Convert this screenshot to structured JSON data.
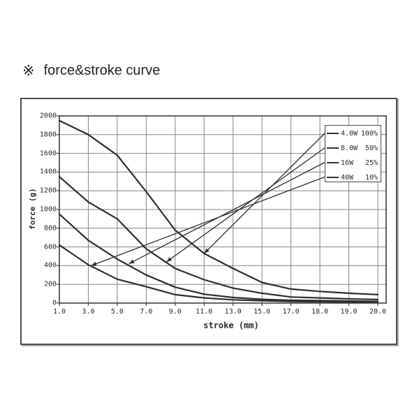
{
  "page": {
    "reference_mark": "※",
    "title_text": "force&stroke curve"
  },
  "colors": {
    "background": "#ffffff",
    "curve": "#2e2e2e",
    "grid": "#858585",
    "plot_border": "#3f3f3f",
    "panel_border": "#4b4b4b",
    "text": "#2b2b2b"
  },
  "legend": {
    "position": "top-right",
    "entries": [
      {
        "label": "4.0W",
        "pct": "100%"
      },
      {
        "label": "8.0W",
        "pct": "50%"
      },
      {
        "label": "16W",
        "pct": "25%"
      },
      {
        "label": "40W",
        "pct": "10%"
      }
    ]
  },
  "chart_data": {
    "type": "line",
    "title": "force&stroke curve",
    "xlabel": "stroke (mm)",
    "ylabel": "force (g)",
    "grid": true,
    "legend_position": "top-right",
    "x_ticks": [
      1.0,
      3.0,
      5.0,
      7.0,
      9.0,
      11.0,
      13.0,
      15.0,
      17.0,
      18.0,
      19.0,
      20.0
    ],
    "x_tick_labels": [
      "1.0",
      "3.0",
      "5.0",
      "7.0",
      "9.0",
      "11.0",
      "13.0",
      "15.0",
      "17.0",
      "18.0",
      "19.0",
      "20.0"
    ],
    "ylim": [
      0,
      2000
    ],
    "y_tick_step": 200,
    "series": [
      {
        "name": "4.0W 100%",
        "values": [
          1950,
          1800,
          1580,
          1190,
          780,
          530,
          370,
          220,
          150,
          125,
          105,
          90
        ]
      },
      {
        "name": "8.0W 50%",
        "values": [
          1350,
          1080,
          900,
          580,
          370,
          250,
          160,
          105,
          65,
          55,
          45,
          38
        ]
      },
      {
        "name": "16W 25%",
        "values": [
          950,
          670,
          470,
          300,
          170,
          95,
          60,
          40,
          30,
          26,
          22,
          18
        ]
      },
      {
        "name": "40W 10%",
        "values": [
          620,
          410,
          255,
          175,
          90,
          55,
          35,
          25,
          18,
          15,
          12,
          10
        ]
      }
    ],
    "annotations": {
      "arrows": [
        {
          "from_legend": "4.0W 100%",
          "target_x": 11.0,
          "target_force": 530
        },
        {
          "from_legend": "8.0W 50%",
          "target_x": 8.4,
          "target_force": 440
        },
        {
          "from_legend": "16W 25%",
          "target_x": 5.8,
          "target_force": 420
        },
        {
          "from_legend": "40W 10%",
          "target_x": 3.2,
          "target_force": 400
        }
      ]
    }
  }
}
